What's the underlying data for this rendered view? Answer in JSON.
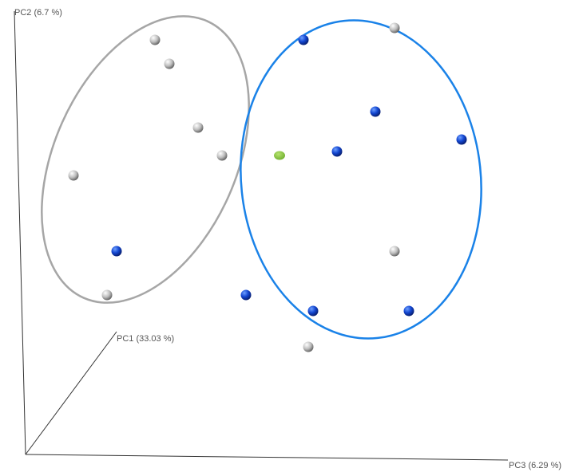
{
  "chart_data": {
    "type": "scatter",
    "projection": "3d",
    "axes": {
      "x": "PC1 (33.03 %)",
      "y": "PC2 (6.7 %)",
      "z": "PC3 (6.29 %)"
    },
    "series": [
      {
        "color": "#c8c8c8",
        "points": [
          {
            "pc3": 0.29,
            "pc2": 0.94
          },
          {
            "pc3": 0.32,
            "pc2": 0.88
          },
          {
            "pc3": 0.38,
            "pc2": 0.72
          },
          {
            "pc3": 0.43,
            "pc2": 0.65
          },
          {
            "pc3": 0.12,
            "pc2": 0.6
          },
          {
            "pc3": 0.19,
            "pc2": 0.3
          },
          {
            "pc3": 0.79,
            "pc2": 0.97
          },
          {
            "pc3": 0.79,
            "pc2": 0.41
          },
          {
            "pc3": 0.61,
            "pc2": 0.17
          }
        ]
      },
      {
        "color": "#1a4fd6",
        "points": [
          {
            "pc3": 0.21,
            "pc2": 0.41
          },
          {
            "pc3": 0.6,
            "pc2": 0.94
          },
          {
            "pc3": 0.75,
            "pc2": 0.76
          },
          {
            "pc3": 0.67,
            "pc2": 0.66
          },
          {
            "pc3": 0.93,
            "pc2": 0.69
          },
          {
            "pc3": 0.48,
            "pc2": 0.3
          },
          {
            "pc3": 0.62,
            "pc2": 0.26
          },
          {
            "pc3": 0.82,
            "pc2": 0.26
          }
        ]
      },
      {
        "color": "#8dc63f",
        "points": [
          {
            "pc3": 0.55,
            "pc2": 0.65
          }
        ]
      }
    ],
    "ellipses": [
      {
        "color": "#a6a6a6",
        "pc3": 0.27,
        "pc2": 0.64,
        "rx": 0.19,
        "ry": 0.38,
        "tilt": 24
      },
      {
        "color": "#1a82e8",
        "pc3": 0.72,
        "pc2": 0.59,
        "rx": 0.25,
        "ry": 0.4,
        "tilt": -6
      }
    ]
  }
}
